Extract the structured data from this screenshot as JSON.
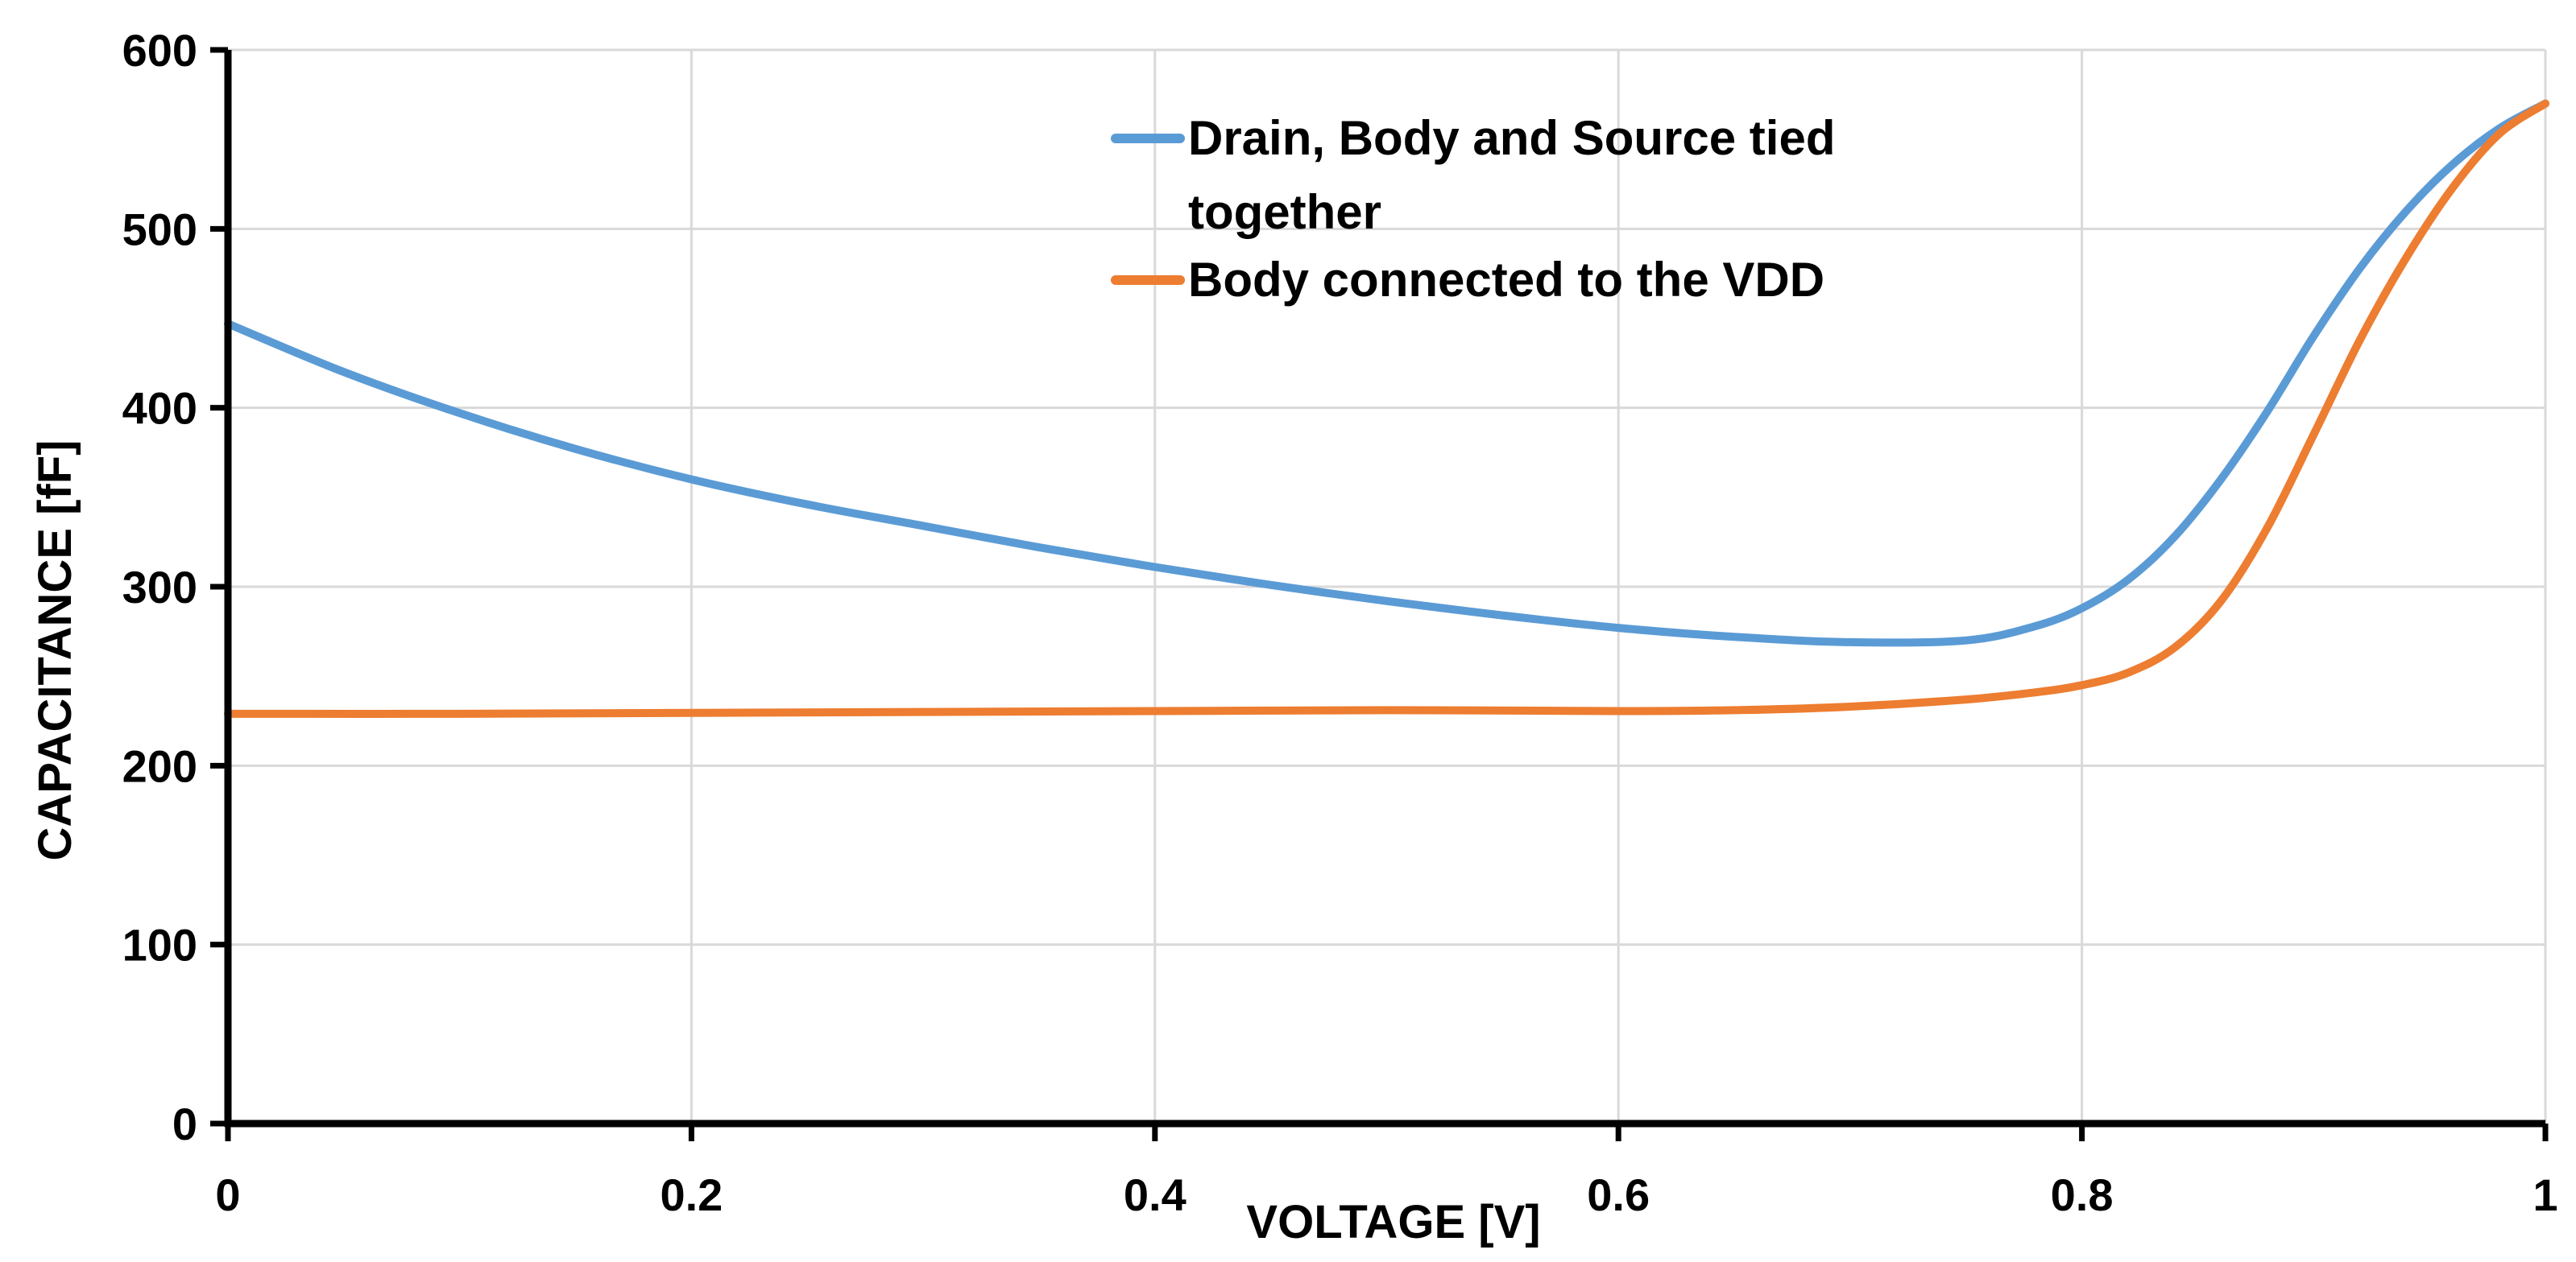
{
  "chart_data": {
    "type": "line",
    "title": "",
    "xlabel": "VOLTAGE [V]",
    "ylabel": "CAPACITANCE [fF]",
    "xlim": [
      0,
      1
    ],
    "ylim": [
      0,
      600
    ],
    "x_ticks": [
      0,
      0.2,
      0.4,
      0.6,
      0.8,
      1
    ],
    "x_tick_labels": [
      "0",
      "0.2",
      "0.4",
      "0.6",
      "0.8",
      "1"
    ],
    "y_ticks": [
      0,
      100,
      200,
      300,
      400,
      500,
      600
    ],
    "y_tick_labels": [
      "0",
      "100",
      "200",
      "300",
      "400",
      "500",
      "600"
    ],
    "grid": true,
    "legend_position": "top-center",
    "series": [
      {
        "name": "Drain, Body and Source tied together",
        "legend_lines": [
          "Drain, Body and Source tied",
          "together"
        ],
        "color": "#5B9BD5",
        "x": [
          0,
          0.05,
          0.1,
          0.15,
          0.2,
          0.25,
          0.3,
          0.35,
          0.4,
          0.45,
          0.5,
          0.55,
          0.6,
          0.65,
          0.7,
          0.75,
          0.78,
          0.8,
          0.82,
          0.84,
          0.86,
          0.88,
          0.9,
          0.92,
          0.94,
          0.96,
          0.98,
          1.0
        ],
        "y": [
          447,
          420,
          397,
          377,
          360,
          346,
          334,
          322,
          311,
          301,
          292,
          284,
          277,
          272,
          269,
          270,
          278,
          288,
          304,
          328,
          360,
          398,
          440,
          478,
          510,
          536,
          556,
          570
        ]
      },
      {
        "name": "Body connected to the VDD",
        "legend_lines": [
          "Body connected to the VDD"
        ],
        "color": "#ED7D31",
        "x": [
          0,
          0.1,
          0.2,
          0.3,
          0.4,
          0.5,
          0.6,
          0.65,
          0.7,
          0.75,
          0.78,
          0.8,
          0.82,
          0.84,
          0.86,
          0.88,
          0.9,
          0.92,
          0.94,
          0.96,
          0.98,
          1.0
        ],
        "y": [
          229,
          229,
          229.5,
          230,
          230.5,
          231,
          230.5,
          231,
          233,
          237,
          241,
          245,
          252,
          266,
          292,
          333,
          385,
          438,
          484,
          523,
          553,
          570
        ]
      }
    ]
  }
}
